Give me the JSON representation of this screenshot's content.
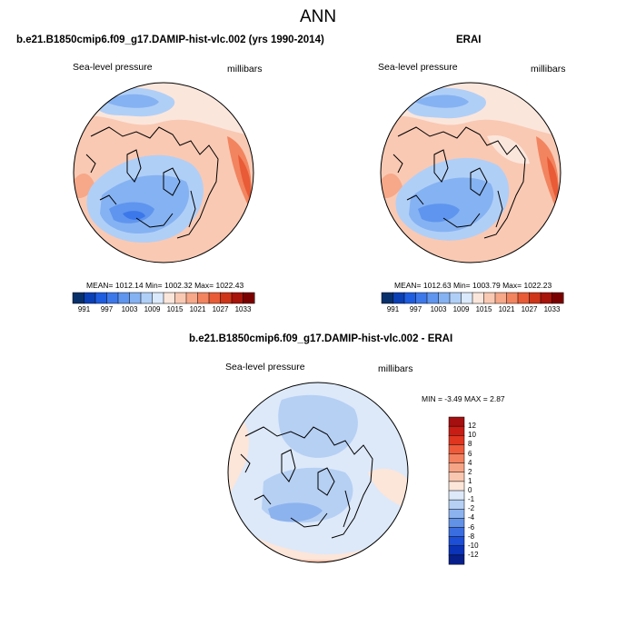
{
  "figure": {
    "title": "ANN"
  },
  "panels": [
    {
      "title": "b.e21.B1850cmip6.f09_g17.DAMIP-hist-vlc.002 (yrs 1990-2014)",
      "left_label": "Sea-level pressure",
      "right_label": "millibars",
      "stats": "MEAN= 1012.14  Min= 1002.32  Max= 1022.43"
    },
    {
      "title": "ERAI",
      "left_label": "Sea-level pressure",
      "right_label": "millibars",
      "stats": "MEAN= 1012.63  Min= 1003.79  Max= 1022.23"
    },
    {
      "title": "b.e21.B1850cmip6.f09_g17.DAMIP-hist-vlc.002 - ERAI",
      "left_label": "Sea-level pressure",
      "right_label": "millibars",
      "stats": "MIN = -3.49 MAX =   2.87"
    }
  ],
  "chart_data": [
    {
      "type": "heatmap",
      "projection": "north-polar-stereographic",
      "title": "b.e21.B1850cmip6.f09_g17.DAMIP-hist-vlc.002 (yrs 1990-2014)",
      "variable": "Sea-level pressure",
      "units": "millibars",
      "mean": 1012.14,
      "min": 1002.32,
      "max": 1022.43,
      "colorbar": {
        "orientation": "horizontal",
        "levels": [
          991,
          994,
          997,
          1000,
          1003,
          1006,
          1009,
          1012,
          1015,
          1018,
          1021,
          1024,
          1027,
          1030,
          1033
        ],
        "tick_labels": [
          "991",
          "997",
          "1003",
          "1009",
          "1015",
          "1021",
          "1027",
          "1033"
        ],
        "colors": [
          "#08306b",
          "#0a3fb5",
          "#1f5de0",
          "#3d78ea",
          "#5f95ee",
          "#85b2f2",
          "#b0cff7",
          "#dae9fb",
          "#fbe6dc",
          "#f9c9b3",
          "#f6a889",
          "#f2845f",
          "#e85b36",
          "#cf3519",
          "#a8130a",
          "#7a0000"
        ]
      }
    },
    {
      "type": "heatmap",
      "projection": "north-polar-stereographic",
      "title": "ERAI",
      "variable": "Sea-level pressure",
      "units": "millibars",
      "mean": 1012.63,
      "min": 1003.79,
      "max": 1022.23,
      "colorbar": {
        "orientation": "horizontal",
        "levels": [
          991,
          994,
          997,
          1000,
          1003,
          1006,
          1009,
          1012,
          1015,
          1018,
          1021,
          1024,
          1027,
          1030,
          1033
        ],
        "tick_labels": [
          "991",
          "997",
          "1003",
          "1009",
          "1015",
          "1021",
          "1027",
          "1033"
        ],
        "colors": [
          "#08306b",
          "#0a3fb5",
          "#1f5de0",
          "#3d78ea",
          "#5f95ee",
          "#85b2f2",
          "#b0cff7",
          "#dae9fb",
          "#fbe6dc",
          "#f9c9b3",
          "#f6a889",
          "#f2845f",
          "#e85b36",
          "#cf3519",
          "#a8130a",
          "#7a0000"
        ]
      }
    },
    {
      "type": "heatmap",
      "projection": "north-polar-stereographic",
      "title": "b.e21.B1850cmip6.f09_g17.DAMIP-hist-vlc.002 - ERAI",
      "variable": "Sea-level pressure",
      "units": "millibars",
      "min": -3.49,
      "max": 2.87,
      "colorbar": {
        "orientation": "vertical",
        "levels": [
          -12,
          -10,
          -8,
          -6,
          -4,
          -2,
          -1,
          0,
          1,
          2,
          4,
          6,
          8,
          10,
          12
        ],
        "tick_labels": [
          "12",
          "10",
          "8",
          "6",
          "4",
          "2",
          "1",
          "0",
          "-1",
          "-2",
          "-4",
          "-6",
          "-8",
          "-10",
          "-12"
        ],
        "colors_top_to_bottom": [
          "#a50f0f",
          "#c81d14",
          "#e0351f",
          "#ee5a3a",
          "#f3805f",
          "#f6a486",
          "#f9c6b0",
          "#fce5d9",
          "#dde9f9",
          "#b6d0f4",
          "#8db3ee",
          "#6292e6",
          "#3a6ee0",
          "#1d4ed6",
          "#0b33b8",
          "#061f8a"
        ]
      }
    }
  ]
}
